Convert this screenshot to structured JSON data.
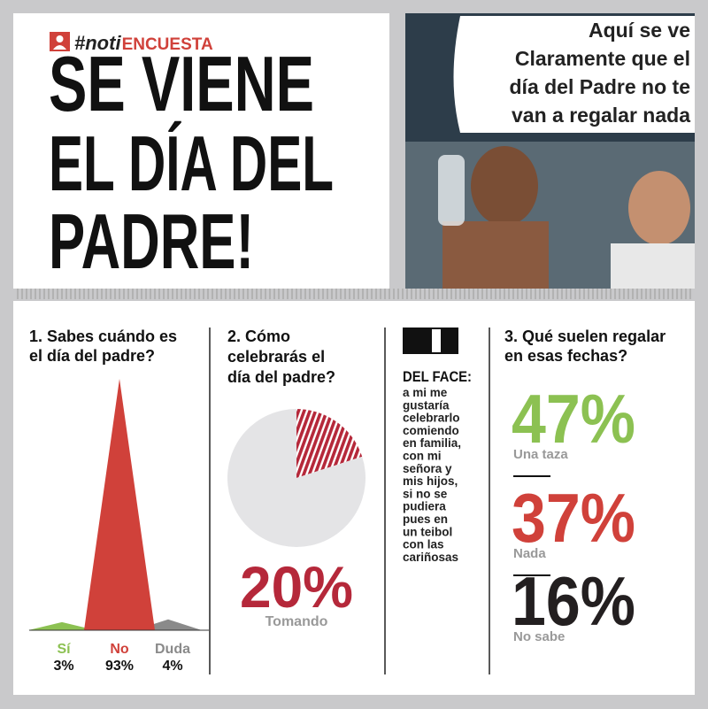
{
  "header": {
    "tag_prefix": "#noti",
    "tag_main": "ENCUESTA",
    "headline": [
      "SE VIENE",
      "EL DÍA DEL",
      "PADRE!"
    ]
  },
  "photo": {
    "caption_lines": [
      "Aquí se ve",
      "Claramente  que el",
      "día del Padre no te",
      "van a regalar  nada"
    ]
  },
  "chart_data": [
    {
      "type": "peak",
      "title_lines": [
        "1. Sabes cuándo es",
        "el día del padre?"
      ],
      "categories": [
        "Sí",
        "No",
        "Duda"
      ],
      "values": [
        3,
        93,
        4
      ],
      "value_labels": [
        "3%",
        "93%",
        "4%"
      ],
      "colors": [
        "#8cc152",
        "#d0413a",
        "#8a8a8a"
      ]
    },
    {
      "type": "pie",
      "title_lines": [
        "2. Cómo",
        "celebrarás el",
        "día del padre?"
      ],
      "categories": [
        "Tomando",
        null
      ],
      "values": [
        20,
        80
      ],
      "value_labels": [
        "20%",
        null
      ],
      "colors": [
        "#b5283a",
        "#e4e4e6"
      ]
    }
  ],
  "face": {
    "title": "DEL FACE:",
    "lines": [
      "a mi me",
      "gustaría",
      "celebrarlo",
      "comiendo",
      "en familia,",
      "con mi",
      "señora y",
      "mis hijos,",
      "si no se",
      "pudiera",
      "pues en",
      "un teibol",
      "con las",
      "cariñosas"
    ]
  },
  "gifts": {
    "title_lines": [
      "3. Qué suelen regalar",
      "en esas fechas?"
    ],
    "items": [
      {
        "percent": "47%",
        "label": "Una taza",
        "color": "#8cc152"
      },
      {
        "percent": "37%",
        "label": "Nada",
        "color": "#d0413a"
      },
      {
        "percent": "16%",
        "label": "No sabe",
        "color": "#231f20"
      }
    ]
  }
}
